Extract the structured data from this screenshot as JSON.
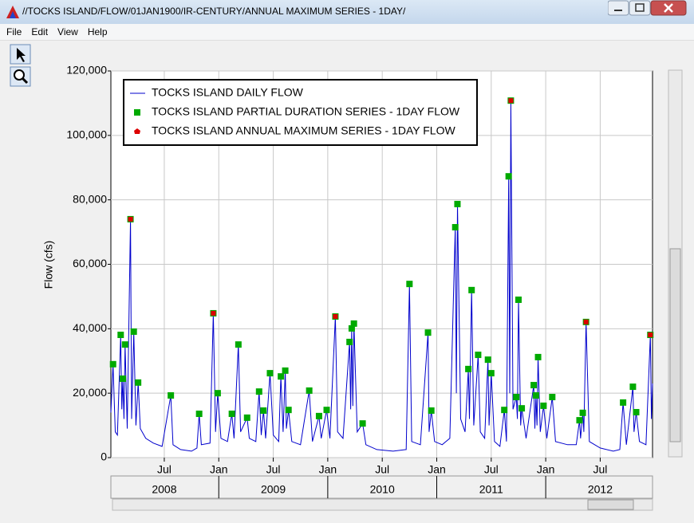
{
  "window": {
    "title": "//TOCKS ISLAND/FLOW/01JAN1900/IR-CENTURY/ANNUAL MAXIMUM SERIES - 1DAY/",
    "menu": [
      "File",
      "Edit",
      "View",
      "Help"
    ]
  },
  "chart_data": {
    "type": "line",
    "y_label": "Flow (cfs)",
    "xlim": [
      2008.01,
      2012.98
    ],
    "ylim": [
      0,
      120000
    ],
    "yticks": [
      0,
      {
        "value": 20000,
        "label": "20,000"
      },
      {
        "value": 40000,
        "label": "40,000"
      },
      {
        "value": 60000,
        "label": "60,000"
      },
      {
        "value": 80000,
        "label": "80,000"
      },
      {
        "value": 100000,
        "label": "100,000"
      },
      {
        "value": 120000,
        "label": "120,000"
      }
    ],
    "xticks": [
      {
        "value": 2008.5,
        "label": "Jul"
      },
      {
        "value": 2009,
        "label": "Jan"
      },
      {
        "value": 2009.5,
        "label": "Jul"
      },
      {
        "value": 2010,
        "label": "Jan"
      },
      {
        "value": 2010.5,
        "label": "Jul"
      },
      {
        "value": 2011,
        "label": "Jan"
      },
      {
        "value": 2011.5,
        "label": "Jul"
      },
      {
        "value": 2012,
        "label": "Jan"
      },
      {
        "value": 2012.5,
        "label": "Jul"
      }
    ],
    "year_labels": [
      {
        "value": 2008.5,
        "label": "2008"
      },
      {
        "value": 2009.5,
        "label": "2009"
      },
      {
        "value": 2010.5,
        "label": "2010"
      },
      {
        "value": 2011.5,
        "label": "2011"
      },
      {
        "value": 2012.5,
        "label": "2012"
      }
    ],
    "grid": true,
    "series": [
      {
        "name": "TOCKS ISLAND DAILY FLOW",
        "color": "#0000cc",
        "marker": "line",
        "x": [
          2008.01,
          2008.03,
          2008.05,
          2008.07,
          2008.1,
          2008.11,
          2008.12,
          2008.13,
          2008.14,
          2008.16,
          2008.19,
          2008.2,
          2008.22,
          2008.24,
          2008.26,
          2008.28,
          2008.33,
          2008.4,
          2008.48,
          2008.56,
          2008.58,
          2008.65,
          2008.75,
          2008.8,
          2008.82,
          2008.84,
          2008.92,
          2008.95,
          2008.97,
          2008.99,
          2009.02,
          2009.08,
          2009.12,
          2009.14,
          2009.18,
          2009.2,
          2009.26,
          2009.28,
          2009.34,
          2009.37,
          2009.39,
          2009.41,
          2009.43,
          2009.47,
          2009.5,
          2009.55,
          2009.57,
          2009.59,
          2009.61,
          2009.62,
          2009.64,
          2009.67,
          2009.75,
          2009.83,
          2009.86,
          2009.92,
          2009.94,
          2009.99,
          2010.02,
          2010.07,
          2010.09,
          2010.14,
          2010.2,
          2010.21,
          2010.22,
          2010.23,
          2010.24,
          2010.27,
          2010.32,
          2010.35,
          2010.45,
          2010.6,
          2010.72,
          2010.75,
          2010.77,
          2010.85,
          2010.92,
          2010.93,
          2010.95,
          2010.98,
          2011.05,
          2011.12,
          2011.17,
          2011.18,
          2011.19,
          2011.22,
          2011.26,
          2011.29,
          2011.3,
          2011.32,
          2011.34,
          2011.38,
          2011.4,
          2011.44,
          2011.47,
          2011.48,
          2011.5,
          2011.53,
          2011.58,
          2011.62,
          2011.64,
          2011.66,
          2011.67,
          2011.68,
          2011.7,
          2011.73,
          2011.74,
          2011.75,
          2011.77,
          2011.78,
          2011.82,
          2011.89,
          2011.9,
          2011.91,
          2011.92,
          2011.93,
          2011.95,
          2011.98,
          2012.01,
          2012.06,
          2012.09,
          2012.2,
          2012.28,
          2012.31,
          2012.32,
          2012.34,
          2012.35,
          2012.37,
          2012.4,
          2012.5,
          2012.62,
          2012.68,
          2012.71,
          2012.74,
          2012.8,
          2012.81,
          2012.83,
          2012.86,
          2012.92,
          2012.96,
          2012.97,
          2012.98
        ],
        "values": [
          14000,
          29000,
          8000,
          7000,
          38100,
          15000,
          24500,
          12000,
          35100,
          9000,
          74000,
          12000,
          39100,
          10000,
          23300,
          9000,
          6000,
          4500,
          3500,
          19300,
          4000,
          2500,
          2000,
          3000,
          13600,
          4000,
          4500,
          44800,
          8000,
          20000,
          6000,
          5000,
          13600,
          6000,
          35100,
          8000,
          12400,
          6000,
          5000,
          20500,
          7000,
          14600,
          6000,
          26200,
          7000,
          5000,
          25200,
          8000,
          27000,
          9000,
          14800,
          5000,
          4000,
          20800,
          5000,
          12900,
          6000,
          14800,
          6000,
          43800,
          8000,
          6000,
          35900,
          15000,
          40100,
          16000,
          41600,
          8000,
          10600,
          4000,
          2500,
          2000,
          2500,
          53900,
          5000,
          4000,
          38800,
          8000,
          14600,
          5000,
          4000,
          6000,
          71500,
          20000,
          78700,
          12000,
          8000,
          27500,
          12000,
          52000,
          10000,
          31900,
          8000,
          6000,
          30400,
          10000,
          26200,
          5000,
          3500,
          14800,
          5000,
          87300,
          20000,
          110800,
          15000,
          18800,
          12000,
          49000,
          10000,
          15300,
          6000,
          22500,
          9000,
          19300,
          10000,
          31200,
          8000,
          16100,
          6000,
          18800,
          5000,
          4000,
          4000,
          11600,
          6000,
          13900,
          8000,
          42100,
          5000,
          3000,
          2000,
          2500,
          17100,
          4000,
          22000,
          8000,
          14100,
          5000,
          4000,
          38100,
          12000,
          23000
        ]
      },
      {
        "name": "TOCKS ISLAND PARTIAL DURATION SERIES - 1DAY FLOW",
        "color": "#00aa00",
        "marker": "square",
        "x": [
          2008.03,
          2008.1,
          2008.12,
          2008.14,
          2008.19,
          2008.22,
          2008.26,
          2008.56,
          2008.82,
          2008.95,
          2008.99,
          2009.12,
          2009.18,
          2009.26,
          2009.37,
          2009.41,
          2009.47,
          2009.57,
          2009.61,
          2009.64,
          2009.83,
          2009.92,
          2009.99,
          2010.07,
          2010.2,
          2010.22,
          2010.24,
          2010.32,
          2010.75,
          2010.92,
          2010.95,
          2011.17,
          2011.19,
          2011.29,
          2011.32,
          2011.38,
          2011.47,
          2011.5,
          2011.62,
          2011.66,
          2011.68,
          2011.73,
          2011.75,
          2011.78,
          2011.89,
          2011.91,
          2011.93,
          2011.98,
          2012.06,
          2012.31,
          2012.34,
          2012.37,
          2012.71,
          2012.8,
          2012.83,
          2012.96
        ],
        "values": [
          29000,
          38100,
          24500,
          35100,
          74000,
          39100,
          23300,
          19300,
          13600,
          44800,
          20000,
          13600,
          35100,
          12400,
          20500,
          14600,
          26200,
          25200,
          27000,
          14800,
          20800,
          12900,
          14800,
          43800,
          35900,
          40100,
          41600,
          10600,
          53900,
          38800,
          14600,
          71500,
          78700,
          27500,
          52000,
          31900,
          30400,
          26200,
          14800,
          87300,
          110800,
          18800,
          49000,
          15300,
          22500,
          19300,
          31200,
          16100,
          18800,
          11600,
          13900,
          42100,
          17100,
          22000,
          14100,
          38100
        ]
      },
      {
        "name": "TOCKS ISLAND ANNUAL MAXIMUM SERIES - 1DAY FLOW",
        "color": "#dd0000",
        "marker": "pentagon",
        "x": [
          2008.19,
          2008.95,
          2010.07,
          2011.68,
          2012.37,
          2012.96
        ],
        "values": [
          74000,
          44800,
          43800,
          110800,
          42100,
          38100
        ]
      }
    ]
  }
}
